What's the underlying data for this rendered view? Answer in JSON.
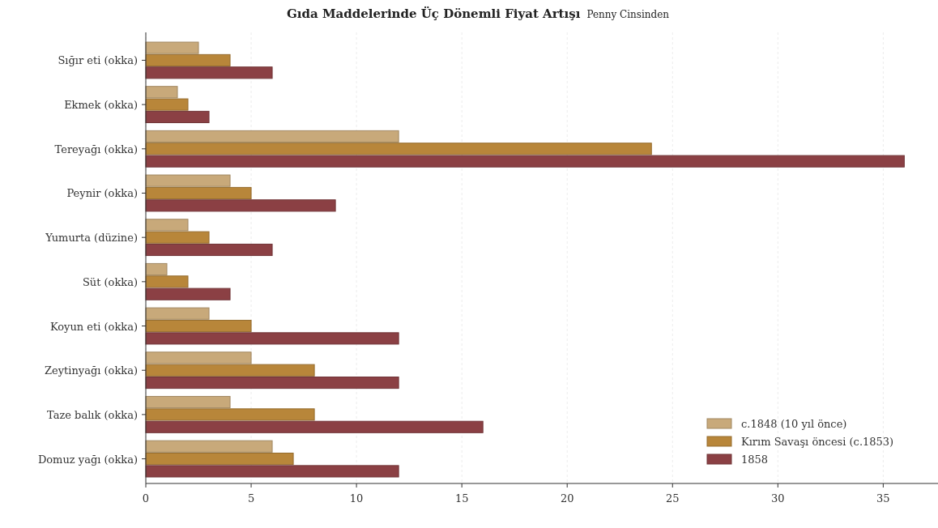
{
  "chart_data": {
    "type": "bar",
    "orientation": "horizontal",
    "title": "Gıda Maddelerinde Üç Dönemli Fiyat Artışı",
    "subtitle": "Penny Cinsinden",
    "categories": [
      "Sığır eti (okka)",
      "Ekmek (okka)",
      "Tereyağı (okka)",
      "Peynir (okka)",
      "Yumurta (düzine)",
      "Süt (okka)",
      "Koyun eti (okka)",
      "Zeytinyağı (okka)",
      "Taze balık (okka)",
      "Domuz yağı (okka)"
    ],
    "series": [
      {
        "name": "c.1848 (10 yıl önce)",
        "color": "#c8a97a",
        "values": [
          2.5,
          1.5,
          12,
          4,
          2,
          1,
          3,
          5,
          4,
          6
        ]
      },
      {
        "name": "Kırım Savaşı öncesi (c.1853)",
        "color": "#b8863a",
        "values": [
          4,
          2,
          24,
          5,
          3,
          2,
          5,
          8,
          8,
          7
        ]
      },
      {
        "name": "1858",
        "color": "#8b4044",
        "values": [
          6,
          3,
          36,
          9,
          6,
          4,
          12,
          12,
          16,
          12
        ]
      }
    ],
    "xlim": [
      0,
      37.6
    ],
    "xticks": [
      0,
      5,
      10,
      15,
      20,
      25,
      30,
      35
    ],
    "grid": "x",
    "legend": "bottom right"
  }
}
